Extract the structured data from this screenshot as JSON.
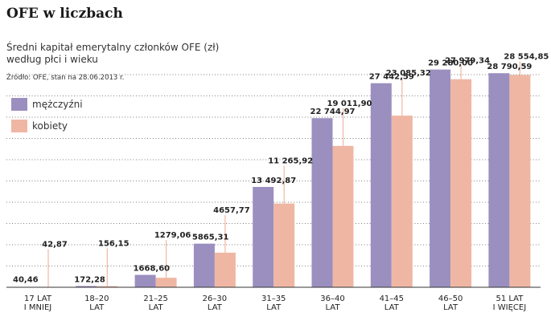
{
  "chart_data": {
    "type": "bar",
    "title": "OFE w liczbach",
    "subtitle_lines": [
      "Średni kapitał emerytalny członków OFE (zł)",
      "według płci i wieku"
    ],
    "source": "Źródło: OFE, stan na 28.06.2013 r.",
    "categories": [
      [
        "17 LAT",
        "I MNIEJ"
      ],
      [
        "18–20",
        "LAT"
      ],
      [
        "21–25",
        "LAT"
      ],
      [
        "26–30",
        "LAT"
      ],
      [
        "31–35",
        "LAT"
      ],
      [
        "36–40",
        "LAT"
      ],
      [
        "41–45",
        "LAT"
      ],
      [
        "46–50",
        "LAT"
      ],
      [
        "51 LAT",
        "I WIĘCEJ"
      ]
    ],
    "series": [
      {
        "name": "mężczyźni",
        "color": "#9b8fc0",
        "values": [
          40.46,
          172.28,
          1668.6,
          5865.31,
          13492.87,
          22744.97,
          27442.59,
          29280.0,
          28790.59
        ],
        "labels": [
          "40,46",
          "172,28",
          "1668,60",
          "5865,31",
          "13 492,87",
          "22 744,97",
          "27 442,59",
          "29 280,00",
          "28 790,59"
        ]
      },
      {
        "name": "kobiety",
        "color": "#efb7a3",
        "values": [
          42.87,
          156.15,
          1279.06,
          4657.77,
          11265.92,
          19011.9,
          23085.32,
          27979.34,
          28554.85
        ],
        "labels": [
          "42,87",
          "156,15",
          "1279,06",
          "4657,77",
          "11 265,92",
          "19 011,90",
          "23 085,32",
          "27 979,34",
          "28 554,85"
        ]
      }
    ],
    "ylim": [
      0,
      30000
    ],
    "grid": true,
    "legend_position": "top-left"
  }
}
